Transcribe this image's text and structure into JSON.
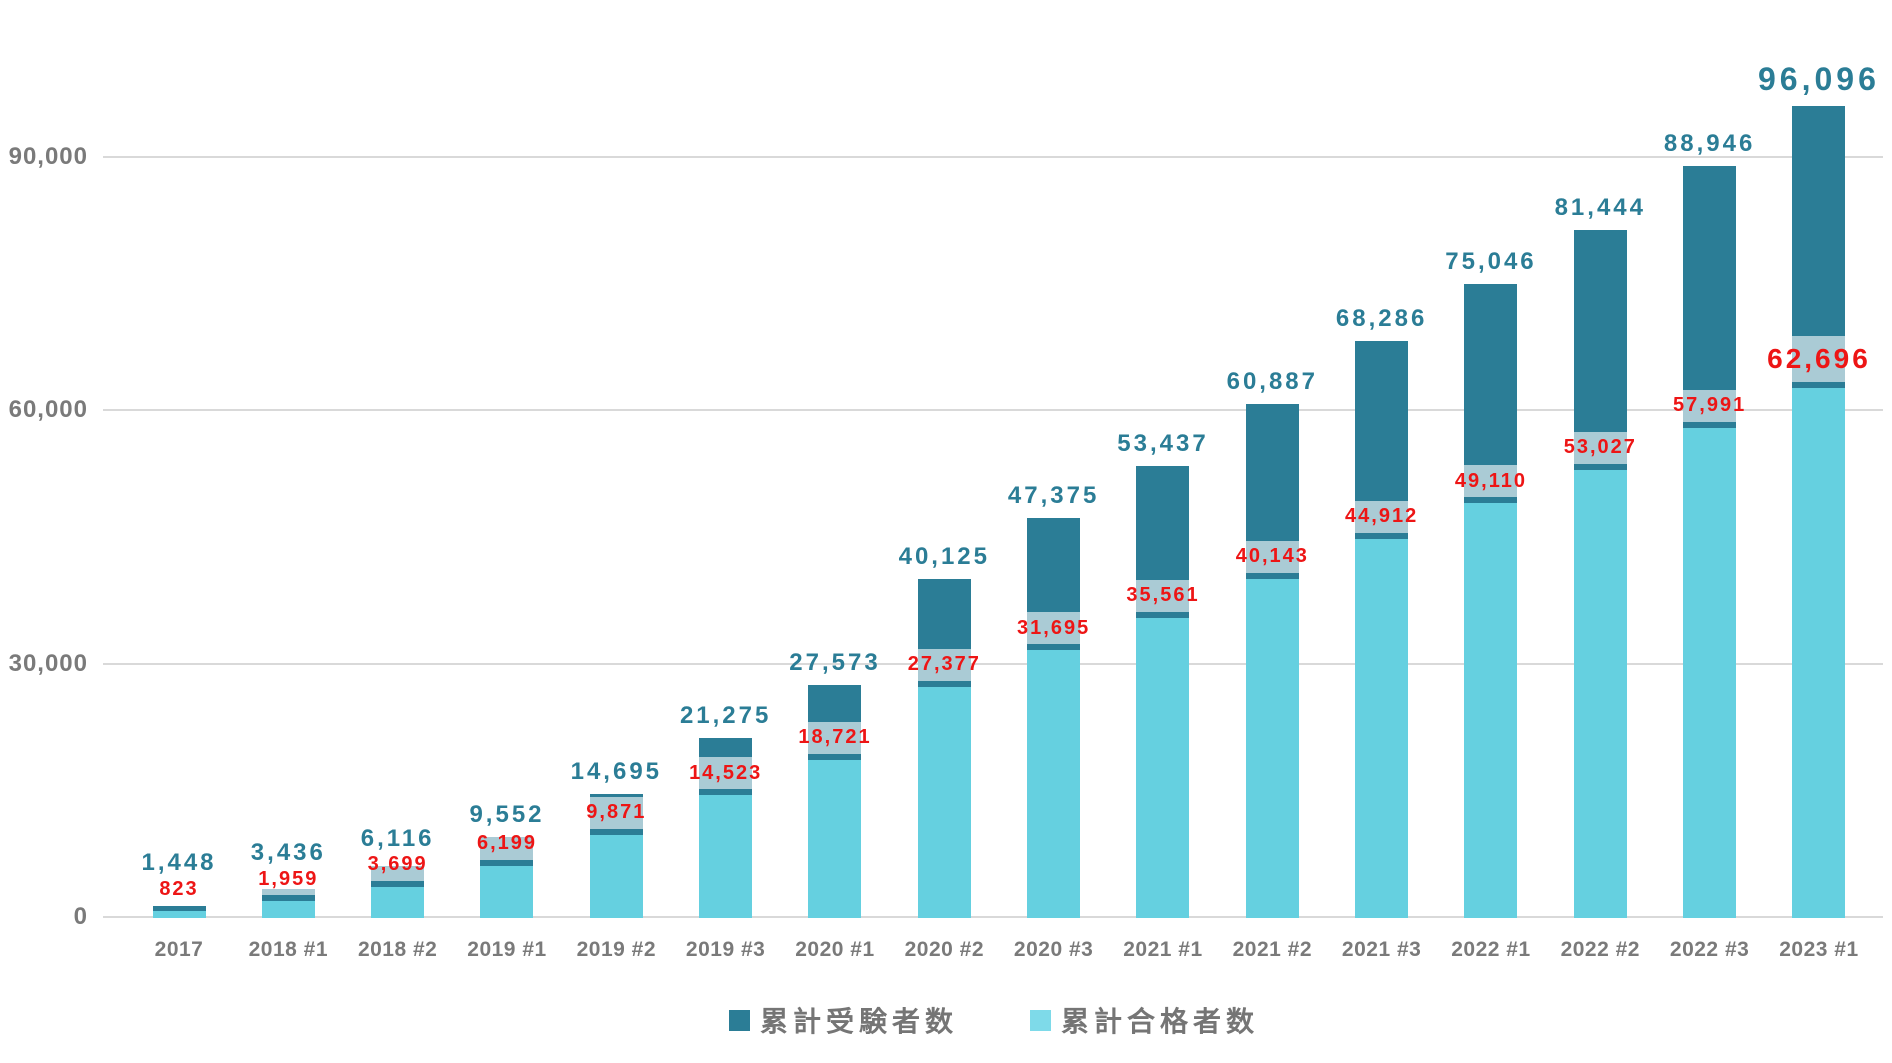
{
  "chart_data": {
    "type": "bar",
    "bar_style": "overlapped",
    "title": "",
    "categories": [
      "2017",
      "2018 #1",
      "2018 #2",
      "2019 #1",
      "2019 #2",
      "2019 #3",
      "2020 #1",
      "2020 #2",
      "2020 #3",
      "2021 #1",
      "2021 #2",
      "2021 #3",
      "2022 #1",
      "2022 #2",
      "2022 #3",
      "2023 #1"
    ],
    "series": [
      {
        "name": "累計受験者数",
        "color": "#2B7D96",
        "label_color": "#2B7D96",
        "values": [
          1448,
          3436,
          6116,
          9552,
          14695,
          21275,
          27573,
          40125,
          47375,
          53437,
          60887,
          68286,
          75046,
          81444,
          88946,
          96096
        ]
      },
      {
        "name": "累計合格者数",
        "color": "#65D0E0",
        "label_color": "#ED1515",
        "values": [
          823,
          1959,
          3699,
          6199,
          9871,
          14523,
          18721,
          27377,
          31695,
          35561,
          40143,
          44912,
          49110,
          53027,
          57991,
          62696
        ]
      }
    ],
    "y_axis": {
      "tick_labels": [
        "0",
        "30,000",
        "60,000",
        "90,000"
      ],
      "tick_values": [
        0,
        30000,
        60000,
        90000
      ]
    },
    "ylim": [
      0,
      97000
    ],
    "grid": "horizontal",
    "gridline_color": "#d9d9d9",
    "legend_position": "bottom",
    "emphasized_last_point": true,
    "data_label_background": "rgba(255,255,255,0.60)"
  },
  "legend": {
    "items": [
      {
        "label": "累計受験者数",
        "swatch_color": "#2B7D96"
      },
      {
        "label": "累計合格者数",
        "swatch_color": "#7EDAE9"
      }
    ]
  },
  "axis": {
    "text_color": "#7a7a7a"
  }
}
